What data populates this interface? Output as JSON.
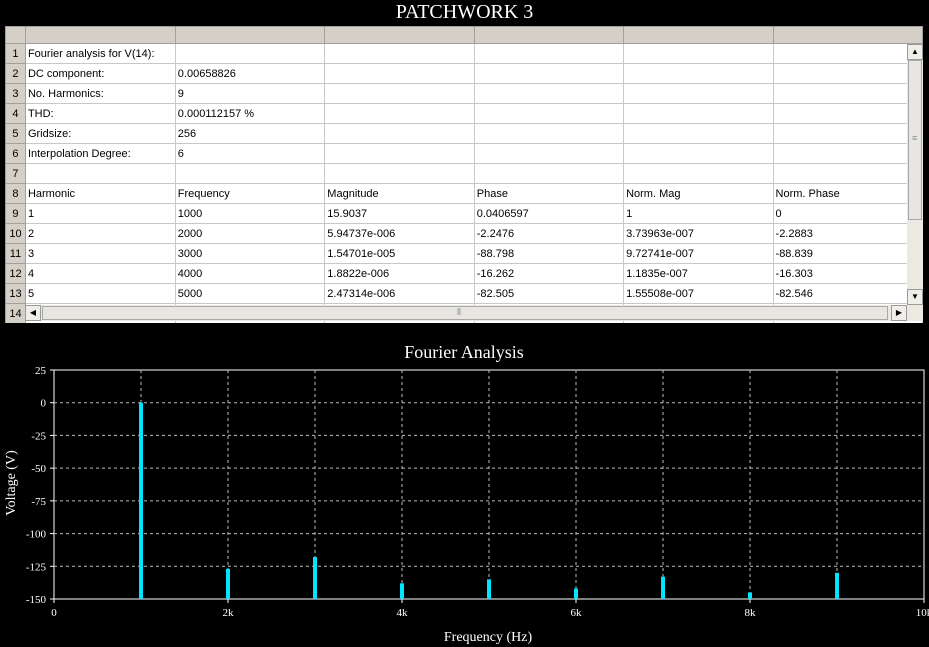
{
  "window": {
    "title": "PATCHWORK 3"
  },
  "spreadsheet": {
    "row_numbers": [
      "1",
      "2",
      "3",
      "4",
      "5",
      "6",
      "7",
      "8",
      "9",
      "10",
      "11",
      "12",
      "13",
      "14"
    ],
    "rows": [
      [
        "Fourier analysis for V(14):",
        "",
        "",
        "",
        "",
        ""
      ],
      [
        "DC component:",
        "0.00658826",
        "",
        "",
        "",
        ""
      ],
      [
        "No. Harmonics:",
        "9",
        "",
        "",
        "",
        ""
      ],
      [
        "THD:",
        "0.000112157 %",
        "",
        "",
        "",
        ""
      ],
      [
        "Gridsize:",
        "256",
        "",
        "",
        "",
        ""
      ],
      [
        "Interpolation Degree:",
        "6",
        "",
        "",
        "",
        ""
      ],
      [
        "",
        "",
        "",
        "",
        "",
        ""
      ],
      [
        "Harmonic",
        "Frequency",
        "Magnitude",
        "Phase",
        "Norm. Mag",
        "Norm. Phase"
      ],
      [
        "1",
        "1000",
        "15.9037",
        "0.0406597",
        "1",
        "0"
      ],
      [
        "2",
        "2000",
        "5.94737e-006",
        "-2.2476",
        "3.73963e-007",
        "-2.2883"
      ],
      [
        "3",
        "3000",
        "1.54701e-005",
        "-88.798",
        "9.72741e-007",
        "-88.839"
      ],
      [
        "4",
        "4000",
        "1.8822e-006",
        "-16.262",
        "1.1835e-007",
        "-16.303"
      ],
      [
        "5",
        "5000",
        "2.47314e-006",
        "-82.505",
        "1.55508e-007",
        "-82.546"
      ],
      [
        "",
        "",
        "",
        "",
        "",
        ""
      ]
    ]
  },
  "chart_data": {
    "type": "bar",
    "title": "Fourier Analysis",
    "xlabel": "Frequency (Hz)",
    "ylabel": "Voltage (V)",
    "xlim": [
      0,
      10000
    ],
    "ylim": [
      -150,
      25
    ],
    "xticks": [
      0,
      2000,
      4000,
      6000,
      8000,
      10000
    ],
    "xtick_labels": [
      "0",
      "2k",
      "4k",
      "6k",
      "8k",
      "10k"
    ],
    "yticks": [
      25,
      0,
      -25,
      -50,
      -75,
      -100,
      -125,
      -150
    ],
    "ytick_labels": [
      "25",
      "0",
      "-25",
      "-50",
      "-75",
      "-100",
      "-125",
      "-150"
    ],
    "grid": true,
    "bar_color": "#00e5ff",
    "x": [
      1000,
      2000,
      3000,
      4000,
      5000,
      6000,
      7000,
      8000,
      9000
    ],
    "values": [
      0,
      -127,
      -118,
      -138,
      -135,
      -142,
      -133,
      -145,
      -130
    ]
  }
}
